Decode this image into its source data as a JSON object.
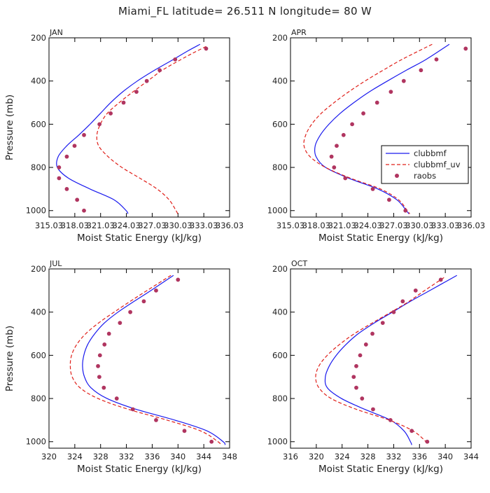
{
  "figure": {
    "title": "Miami_FL   latitude= 26.511 N longitude= 80 W"
  },
  "legend": {
    "entries": [
      {
        "name": "clubbmf",
        "color": "#1a1aee",
        "style": "solid"
      },
      {
        "name": "clubbmf_uv",
        "color": "#e0201a",
        "style": "dashed"
      },
      {
        "name": "raobs",
        "color": "#b03560",
        "style": "dots"
      }
    ]
  },
  "chart_data": [
    {
      "type": "line",
      "panel": "JAN",
      "xlabel": "Moist Static Energy (kJ/kg)",
      "ylabel": "Pressure (mb)",
      "xlim": [
        315.03,
        336.03
      ],
      "ylim": [
        1030,
        200
      ],
      "xticks": [
        315.03,
        318.03,
        321.03,
        324.03,
        327.03,
        330.03,
        333.03,
        336.03
      ],
      "xtick_labels": [
        "315.03",
        "318.03",
        "321.03",
        "324.03",
        "327.03",
        "330.03",
        "333.03",
        "336.03"
      ],
      "yticks": [
        200,
        400,
        600,
        800,
        1000
      ],
      "ytick_labels": [
        "200",
        "400",
        "600",
        "800",
        "1000"
      ],
      "series": [
        {
          "name": "clubbmf",
          "pressure": [
            230,
            260,
            300,
            350,
            400,
            450,
            500,
            550,
            600,
            650,
            700,
            750,
            800,
            850,
            900,
            950,
            1000,
            1015
          ],
          "values": [
            332.6,
            331.2,
            329.5,
            327.3,
            325.3,
            323.6,
            322.2,
            321.0,
            319.8,
            318.5,
            317.1,
            316.1,
            316.0,
            317.3,
            319.8,
            322.6,
            324.0,
            324.2
          ]
        },
        {
          "name": "clubbmf_uv",
          "pressure": [
            240,
            270,
            300,
            350,
            400,
            450,
            500,
            550,
            600,
            650,
            700,
            750,
            800,
            850,
            900,
            950,
            1000,
            1015
          ],
          "values": [
            333.3,
            331.8,
            330.4,
            328.2,
            326.5,
            324.8,
            323.2,
            321.8,
            321.0,
            320.6,
            320.8,
            321.9,
            323.5,
            325.6,
            327.6,
            329.0,
            329.8,
            330.0
          ]
        },
        {
          "name": "raobs",
          "pressure": [
            250,
            300,
            350,
            400,
            450,
            500,
            550,
            600,
            650,
            700,
            750,
            800,
            850,
            900,
            950,
            1000
          ],
          "values": [
            333.3,
            329.7,
            327.9,
            326.4,
            325.2,
            323.7,
            322.2,
            320.9,
            319.1,
            318.0,
            317.1,
            316.2,
            316.2,
            317.1,
            318.3,
            319.1
          ]
        }
      ]
    },
    {
      "type": "line",
      "panel": "APR",
      "xlabel": "Moist Static Energy (kJ/kg)",
      "ylabel": "",
      "xlim": [
        315.03,
        336.03
      ],
      "ylim": [
        1030,
        200
      ],
      "xticks": [
        315.03,
        318.03,
        321.03,
        324.03,
        327.03,
        330.03,
        333.03,
        336.03
      ],
      "xtick_labels": [
        "315.03",
        "318.03",
        "321.03",
        "324.03",
        "327.03",
        "330.03",
        "333.03",
        "336.03"
      ],
      "yticks": [
        200,
        400,
        600,
        800,
        1000
      ],
      "ytick_labels": [
        "200",
        "400",
        "600",
        "800",
        "1000"
      ],
      "series": [
        {
          "name": "clubbmf",
          "pressure": [
            230,
            300,
            350,
            400,
            450,
            500,
            550,
            600,
            650,
            700,
            750,
            800,
            850,
            900,
            950,
            1000,
            1015
          ],
          "values": [
            333.5,
            330.8,
            328.5,
            326.3,
            324.2,
            322.4,
            320.8,
            319.5,
            318.5,
            317.9,
            318.0,
            319.1,
            321.8,
            325.2,
            327.4,
            328.5,
            328.8
          ]
        },
        {
          "name": "clubbmf_uv",
          "pressure": [
            230,
            300,
            350,
            400,
            450,
            500,
            550,
            600,
            650,
            700,
            750,
            800,
            850,
            900,
            950,
            1000,
            1015
          ],
          "values": [
            331.5,
            328.0,
            325.8,
            323.7,
            321.8,
            320.1,
            318.6,
            317.5,
            316.8,
            316.6,
            317.3,
            319.1,
            322.0,
            325.5,
            327.6,
            328.6,
            328.9
          ]
        },
        {
          "name": "raobs",
          "pressure": [
            250,
            300,
            350,
            400,
            450,
            500,
            550,
            600,
            650,
            700,
            750,
            800,
            850,
            900,
            950,
            1000
          ],
          "values": [
            335.4,
            332.0,
            330.2,
            328.2,
            326.7,
            325.1,
            323.5,
            322.2,
            321.2,
            320.4,
            319.8,
            320.1,
            321.4,
            324.6,
            326.5,
            328.4
          ]
        }
      ]
    },
    {
      "type": "line",
      "panel": "JUL",
      "xlabel": "Moist Static Energy (kJ/kg)",
      "ylabel": "Pressure (mb)",
      "xlim": [
        320,
        348
      ],
      "ylim": [
        1030,
        200
      ],
      "xticks": [
        320,
        324,
        328,
        332,
        336,
        340,
        344,
        348
      ],
      "xtick_labels": [
        "320",
        "324",
        "328",
        "332",
        "336",
        "340",
        "344",
        "348"
      ],
      "yticks": [
        200,
        400,
        600,
        800,
        1000
      ],
      "ytick_labels": [
        "200",
        "400",
        "600",
        "800",
        "1000"
      ],
      "series": [
        {
          "name": "clubbmf",
          "pressure": [
            230,
            300,
            350,
            400,
            450,
            500,
            550,
            600,
            650,
            700,
            750,
            800,
            850,
            900,
            950,
            1000,
            1015
          ],
          "values": [
            339.3,
            335.8,
            333.2,
            330.7,
            328.6,
            327.1,
            326.0,
            325.4,
            325.2,
            325.5,
            326.5,
            329.0,
            333.5,
            339.5,
            344.5,
            347.0,
            347.3
          ]
        },
        {
          "name": "clubbmf_uv",
          "pressure": [
            230,
            300,
            350,
            400,
            450,
            500,
            550,
            600,
            650,
            700,
            750,
            800,
            850,
            900,
            950,
            1000,
            1015
          ],
          "values": [
            338.9,
            335.2,
            332.6,
            330.1,
            327.7,
            325.7,
            324.3,
            323.5,
            323.3,
            323.6,
            324.8,
            327.6,
            332.3,
            338.3,
            343.5,
            346.2,
            346.6
          ]
        },
        {
          "name": "raobs",
          "pressure": [
            250,
            300,
            350,
            400,
            450,
            500,
            550,
            600,
            650,
            700,
            750,
            800,
            850,
            900,
            950,
            1000
          ],
          "values": [
            340.0,
            336.6,
            334.7,
            332.6,
            331.0,
            329.3,
            328.6,
            327.9,
            327.6,
            327.8,
            328.5,
            330.5,
            333.0,
            336.6,
            341.0,
            345.2
          ]
        }
      ]
    },
    {
      "type": "line",
      "panel": "OCT",
      "xlabel": "Moist Static Energy (kJ/kg)",
      "ylabel": "",
      "xlim": [
        316,
        344
      ],
      "ylim": [
        1030,
        200
      ],
      "xticks": [
        316,
        320,
        324,
        328,
        332,
        336,
        340,
        344
      ],
      "xtick_labels": [
        "316",
        "320",
        "324",
        "328",
        "332",
        "336",
        "340",
        "344"
      ],
      "yticks": [
        200,
        400,
        600,
        800,
        1000
      ],
      "ytick_labels": [
        "200",
        "400",
        "600",
        "800",
        "1000"
      ],
      "series": [
        {
          "name": "clubbmf",
          "pressure": [
            230,
            300,
            350,
            400,
            450,
            500,
            550,
            600,
            650,
            700,
            750,
            800,
            850,
            900,
            950,
            1000,
            1015
          ],
          "values": [
            341.8,
            337.6,
            334.6,
            331.8,
            329.0,
            326.5,
            324.6,
            323.1,
            322.0,
            321.4,
            321.7,
            323.9,
            327.5,
            331.5,
            333.6,
            334.6,
            334.8
          ]
        },
        {
          "name": "clubbmf_uv",
          "pressure": [
            240,
            300,
            350,
            400,
            450,
            500,
            550,
            600,
            650,
            700,
            750,
            800,
            850,
            900,
            950,
            1000,
            1015
          ],
          "values": [
            339.8,
            336.8,
            334.4,
            331.6,
            328.7,
            325.9,
            323.6,
            321.7,
            320.4,
            319.9,
            320.4,
            322.3,
            326.2,
            331.3,
            335.0,
            337.0,
            337.3
          ]
        },
        {
          "name": "raobs",
          "pressure": [
            250,
            300,
            350,
            400,
            450,
            500,
            550,
            600,
            650,
            700,
            750,
            800,
            850,
            900,
            950,
            1000
          ],
          "values": [
            339.3,
            335.4,
            333.4,
            332.0,
            330.3,
            328.7,
            327.7,
            326.8,
            326.2,
            325.8,
            326.2,
            327.1,
            328.8,
            331.5,
            334.8,
            337.2
          ]
        }
      ]
    }
  ]
}
